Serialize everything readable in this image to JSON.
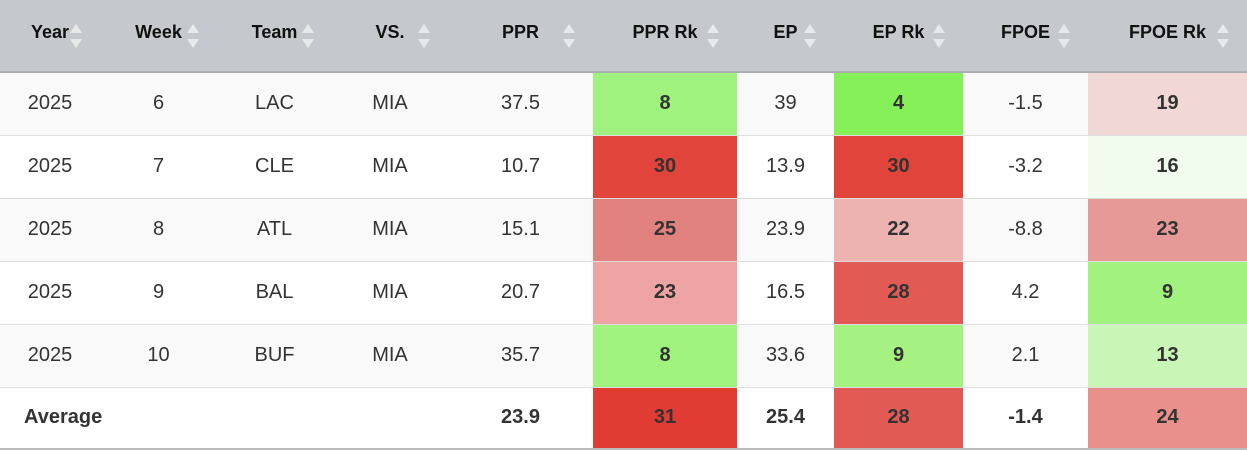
{
  "headers": [
    "Year",
    "Week",
    "Team",
    "VS.",
    "PPR",
    "PPR Rk",
    "EP",
    "EP Rk",
    "FPOE",
    "FPOE Rk"
  ],
  "rows": [
    {
      "year": "2025",
      "week": "6",
      "team": "LAC",
      "vs": "MIA",
      "ppr": "37.5",
      "ppr_rk": "8",
      "ep": "39",
      "ep_rk": "4",
      "fpoe": "-1.5",
      "fpoe_rk": "19"
    },
    {
      "year": "2025",
      "week": "7",
      "team": "CLE",
      "vs": "MIA",
      "ppr": "10.7",
      "ppr_rk": "30",
      "ep": "13.9",
      "ep_rk": "30",
      "fpoe": "-3.2",
      "fpoe_rk": "16"
    },
    {
      "year": "2025",
      "week": "8",
      "team": "ATL",
      "vs": "MIA",
      "ppr": "15.1",
      "ppr_rk": "25",
      "ep": "23.9",
      "ep_rk": "22",
      "fpoe": "-8.8",
      "fpoe_rk": "23"
    },
    {
      "year": "2025",
      "week": "9",
      "team": "BAL",
      "vs": "MIA",
      "ppr": "20.7",
      "ppr_rk": "23",
      "ep": "16.5",
      "ep_rk": "28",
      "fpoe": "4.2",
      "fpoe_rk": "9"
    },
    {
      "year": "2025",
      "week": "10",
      "team": "BUF",
      "vs": "MIA",
      "ppr": "35.7",
      "ppr_rk": "8",
      "ep": "33.6",
      "ep_rk": "9",
      "fpoe": "2.1",
      "fpoe_rk": "13"
    }
  ],
  "average": {
    "label": "Average",
    "ppr": "23.9",
    "ppr_rk": "31",
    "ep": "25.4",
    "ep_rk": "28",
    "fpoe": "-1.4",
    "fpoe_rk": "24"
  },
  "colors": {
    "rows": [
      {
        "ppr_rk": "#9ff27d",
        "ep_rk": "#86f058",
        "fpoe_rk": "#f2d7d7"
      },
      {
        "ppr_rk": "#e0443b",
        "ep_rk": "#e0443b",
        "fpoe_rk": "#f2fcee"
      },
      {
        "ppr_rk": "#e1827e",
        "ep_rk": "#ecb3b1",
        "fpoe_rk": "#e69a97"
      },
      {
        "ppr_rk": "#eea4a2",
        "ep_rk": "#e25a54",
        "fpoe_rk": "#a2f27f"
      },
      {
        "ppr_rk": "#9ff27d",
        "ep_rk": "#a5f283",
        "fpoe_rk": "#c9f5b6"
      }
    ],
    "average": {
      "ppr_rk": "#e03c33",
      "ep_rk": "#e25a54",
      "fpoe_rk": "#e9908c"
    }
  },
  "icons": {
    "sort": "sort-both-icon"
  }
}
